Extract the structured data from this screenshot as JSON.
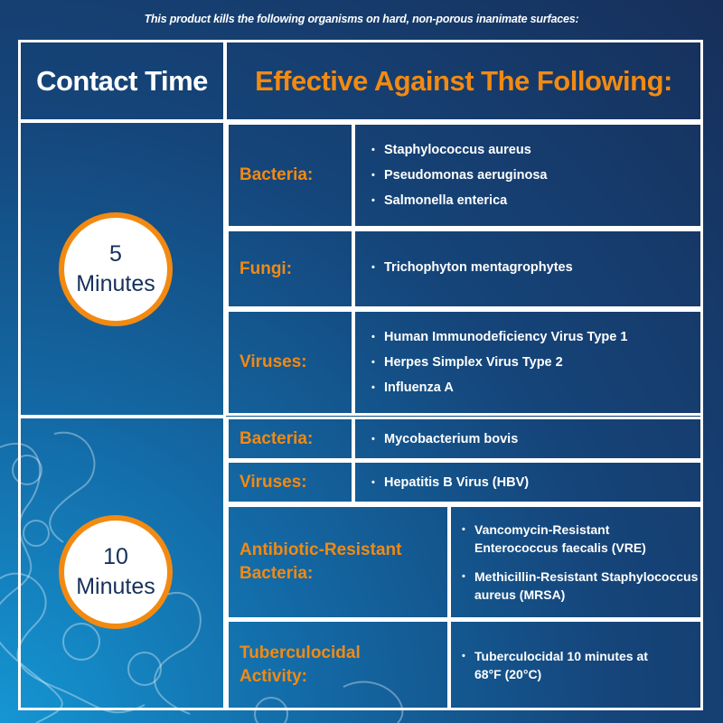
{
  "subtitle": "This product kills the following organisms on hard, non-porous inanimate surfaces:",
  "header": {
    "contact_time": "Contact Time",
    "effective_against": "Effective Against The Following:"
  },
  "colors": {
    "accent": "#f28a12",
    "navy": "#16305a",
    "border": "#ffffff"
  },
  "sections": [
    {
      "time_number": "5",
      "time_unit": "Minutes",
      "rows": [
        {
          "label": "Bacteria:",
          "items": [
            "Staphylococcus aureus",
            "Pseudomonas aeruginosa",
            "Salmonella enterica"
          ]
        },
        {
          "label": "Fungi:",
          "items": [
            "Trichophyton mentagrophytes"
          ]
        },
        {
          "label": "Viruses:",
          "items": [
            "Human Immunodeficiency Virus Type 1",
            "Herpes Simplex Virus Type 2",
            "Influenza A"
          ]
        }
      ]
    },
    {
      "time_number": "10",
      "time_unit": "Minutes",
      "rows": [
        {
          "label": "Bacteria:",
          "items": [
            "Mycobacterium bovis"
          ]
        },
        {
          "label": "Viruses:",
          "items": [
            "Hepatitis B Virus (HBV)"
          ]
        },
        {
          "label": "Antibiotic-Resistant Bacteria:",
          "items": [
            "Vancomycin-Resistant Enterococcus faecalis (VRE)",
            "Methicillin-Resistant Staphylococcus aureus (MRSA)"
          ]
        },
        {
          "label": "Tuberculocidal Activity:",
          "items": [
            "Tuberculocidal 10 minutes at 68°F (20°C)"
          ]
        }
      ]
    }
  ]
}
